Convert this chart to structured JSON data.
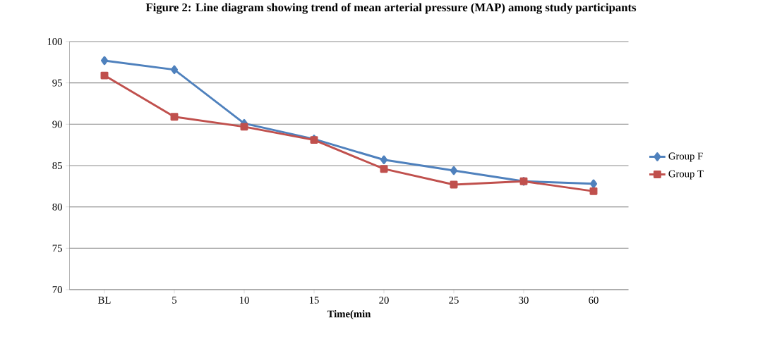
{
  "chart_data": {
    "type": "line",
    "title": "Figure 2: Line diagram showing trend of mean arterial pressure (MAP) among study participants",
    "xlabel": "Time(min",
    "categories": [
      "BL",
      "5",
      "10",
      "15",
      "20",
      "25",
      "30",
      "60"
    ],
    "series": [
      {
        "name": "Group F",
        "color": "#4f81bd",
        "marker": "diamond",
        "values": [
          97.7,
          96.6,
          90.1,
          88.2,
          85.7,
          84.4,
          83.1,
          82.8
        ]
      },
      {
        "name": "Group T",
        "color": "#c0504d",
        "marker": "square",
        "values": [
          95.9,
          90.9,
          89.7,
          88.1,
          84.6,
          82.7,
          83.1,
          81.9
        ]
      }
    ],
    "ylim": [
      70,
      100
    ],
    "yticks": [
      70,
      75,
      80,
      85,
      90,
      95,
      100
    ],
    "grid": "y",
    "legend": "right",
    "line_style": "solid"
  }
}
